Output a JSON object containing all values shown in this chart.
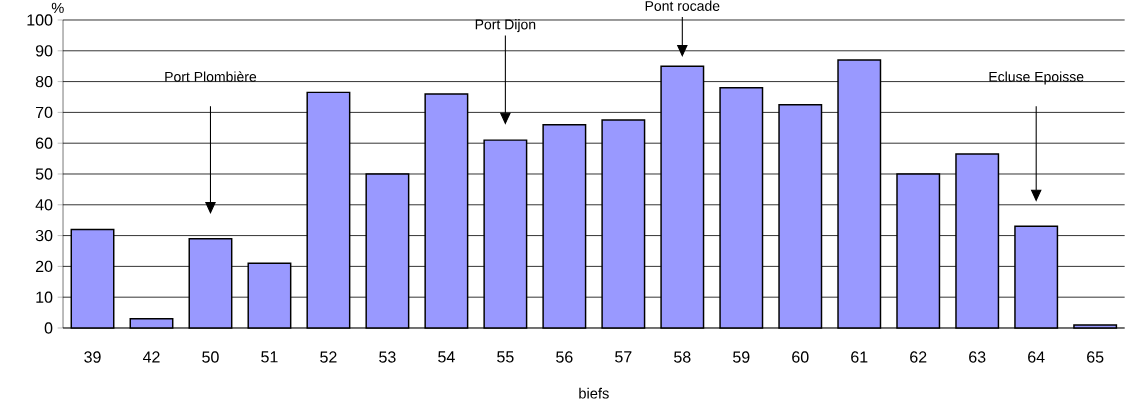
{
  "chart_data": {
    "type": "bar",
    "xlabel": "biefs",
    "ylabel": "%",
    "categories": [
      "39",
      "42",
      "50",
      "51",
      "52",
      "53",
      "54",
      "55",
      "56",
      "57",
      "58",
      "59",
      "60",
      "61",
      "62",
      "63",
      "64",
      "65"
    ],
    "values": [
      32,
      3,
      29,
      21,
      76.5,
      50,
      76,
      61,
      66,
      67.5,
      85,
      78,
      72.5,
      87,
      50,
      56.5,
      33,
      1
    ],
    "color": "#9999ff",
    "ylim": [
      0,
      100
    ],
    "yticks": [
      0,
      10,
      20,
      30,
      40,
      50,
      60,
      70,
      80,
      90,
      100
    ],
    "grid": "y",
    "annotations": [
      "Port Plombière",
      "Port Dijon",
      "Pont rocade",
      "Ecluse Epoisse"
    ]
  }
}
